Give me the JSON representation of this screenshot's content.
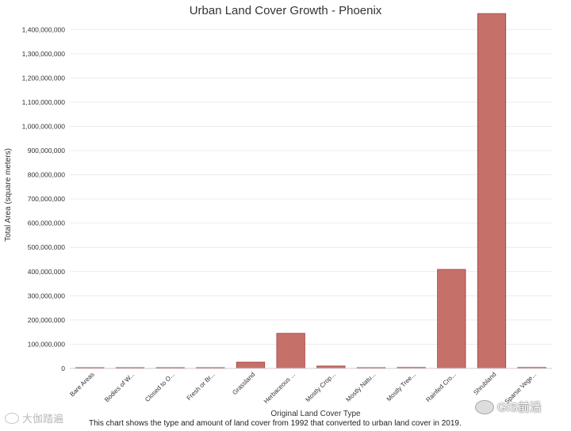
{
  "chart_data": {
    "type": "bar",
    "title": "Urban Land Cover Growth - Phoenix",
    "xlabel": "Original Land Cover Type",
    "ylabel": "Total Area (square meters)",
    "categories": [
      "Bare Areas",
      "Bodies of W...",
      "Closed to O...",
      "Fresh or Br...",
      "Grassland",
      "Herbaceous ...",
      "Mostly Crop...",
      "Mostly Natu...",
      "Mostly Tree...",
      "Rainfed Cro...",
      "Shrubland",
      "Sparse Vege..."
    ],
    "values": [
      900000,
      700000,
      1500000,
      2200000,
      26000000,
      145000000,
      10000000,
      900000,
      4000000,
      409000000,
      1466000000,
      4000000
    ],
    "ylim": [
      0,
      1450000000
    ],
    "yticks": [
      0,
      100000000,
      200000000,
      300000000,
      400000000,
      500000000,
      600000000,
      700000000,
      800000000,
      900000000,
      1000000000,
      1100000000,
      1200000000,
      1300000000,
      1400000000
    ],
    "ytick_labels": [
      "0",
      "100,000,000",
      "200,000,000",
      "300,000,000",
      "400,000,000",
      "500,000,000",
      "600,000,000",
      "700,000,000",
      "800,000,000",
      "900,000,000",
      "1,000,000,000",
      "1,100,000,000",
      "1,200,000,000",
      "1,300,000,000",
      "1,400,000,000"
    ],
    "grid": true,
    "bar_color": "#c6706a",
    "bar_edge_color": "#a3403c",
    "caption": "This chart shows the type and amount of land cover from 1992 that converted to urban land cover in 2019."
  },
  "watermarks": {
    "left": "大伽踏遍",
    "right": "GIS前沿"
  }
}
